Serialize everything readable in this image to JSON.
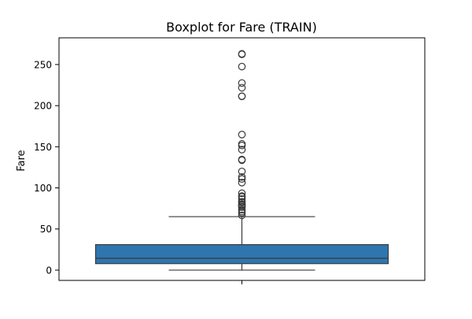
{
  "chart_data": {
    "type": "boxplot",
    "title": "Boxplot for Fare (TRAIN)",
    "ylabel": "Fare",
    "xlabel": "",
    "ylim": [
      -12.5,
      282.5
    ],
    "yticks": [
      0,
      50,
      100,
      150,
      200,
      250
    ],
    "grid": false,
    "series": [
      {
        "color": "#2f76b0",
        "min": 0,
        "q1": 7.9,
        "median": 14.45,
        "q3": 31.0,
        "whisker_low": 0,
        "whisker_high": 65.0,
        "outliers": [
          66.6,
          69.55,
          71.28,
          73.5,
          76.73,
          77.29,
          78.85,
          79.2,
          80.0,
          82.17,
          83.16,
          86.5,
          89.1,
          90.0,
          93.5,
          106.43,
          110.88,
          113.28,
          120.0,
          133.65,
          134.5,
          146.52,
          151.55,
          153.46,
          164.87,
          211.34,
          211.5,
          221.78,
          227.52,
          247.52,
          262.38,
          263.0
        ]
      }
    ]
  }
}
